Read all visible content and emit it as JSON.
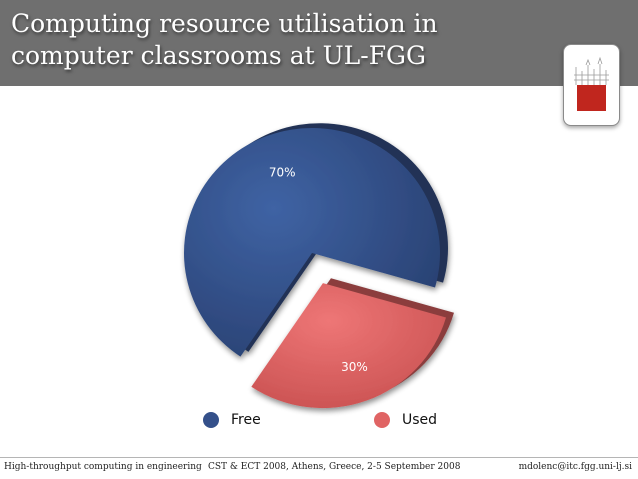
{
  "slide": {
    "title": "Computing resource utilisation in computer classrooms at UL-FGG"
  },
  "footer": {
    "left": "High-throughput computing in engineering",
    "center": "CST & ECT 2008,  Athens, Greece, 2-5 September 2008",
    "right": "mdolenc@itc.fgg.uni-lj.si"
  },
  "chart_data": {
    "type": "pie",
    "title": "",
    "slices": [
      {
        "label": "Free",
        "value": 70,
        "display": "70%",
        "color": "#34508a",
        "exploded": false
      },
      {
        "label": "Used",
        "value": 30,
        "display": "30%",
        "color": "#e06464",
        "exploded": true
      }
    ],
    "legend": {
      "placement": "bottom",
      "items": [
        {
          "label": "Free",
          "color": "#34508a"
        },
        {
          "label": "Used",
          "color": "#e06464"
        }
      ]
    }
  },
  "colors": {
    "header": "#6f6f6f",
    "logo_red": "#c0261e"
  },
  "icons": {
    "logo": "university-building-logo"
  }
}
